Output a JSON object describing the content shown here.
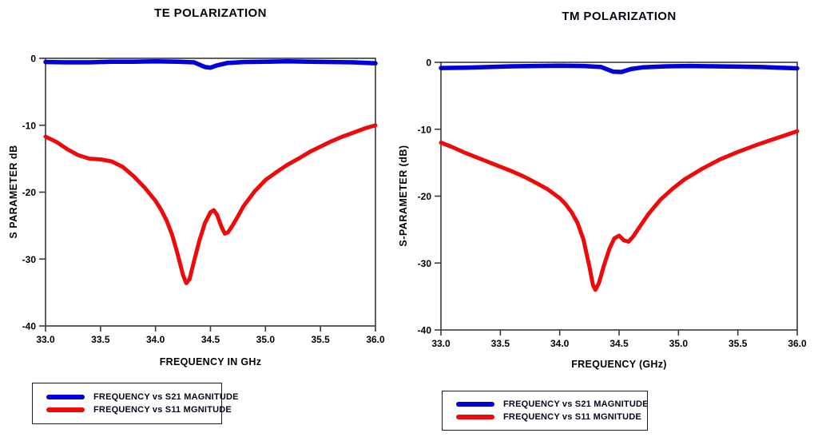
{
  "page": {
    "background": "#ffffff"
  },
  "colors": {
    "s21_blue": "#0000dd",
    "s11_red": "#ee0a0a",
    "frame": "#3a3a3a"
  },
  "chart_data": [
    {
      "id": "te",
      "type": "line",
      "title": "TE POLARIZATION",
      "xlabel": "FREQUENCY IN GHz",
      "ylabel": "S PARAMETER  dB",
      "xlim": [
        33.0,
        36.0
      ],
      "ylim": [
        -40,
        0
      ],
      "grid": false,
      "xticks": [
        33.0,
        33.5,
        34.0,
        34.5,
        35.0,
        35.5,
        36.0
      ],
      "xtick_labels": [
        "33.0",
        "33.5",
        "34.0",
        "34.5",
        "35.0",
        "35.5",
        "36.0"
      ],
      "yticks": [
        0,
        -10,
        -20,
        -30,
        -40
      ],
      "ytick_labels": [
        "0",
        "-10",
        "-20",
        "-30",
        "-40"
      ],
      "legend_position": "below-left",
      "legend": [
        {
          "label": "FREQUENCY vs S21  MAGNITUDE",
          "color": "#0000dd"
        },
        {
          "label": "FREQUENCY vs S11 MGNITUDE",
          "color": "#ee0a0a"
        }
      ],
      "series": [
        {
          "name": "S11",
          "color": "#ee0a0a",
          "width": 5,
          "points": [
            [
              33.0,
              -11.7
            ],
            [
              33.1,
              -12.5
            ],
            [
              33.2,
              -13.6
            ],
            [
              33.3,
              -14.5
            ],
            [
              33.4,
              -15.0
            ],
            [
              33.5,
              -15.1
            ],
            [
              33.6,
              -15.4
            ],
            [
              33.7,
              -16.2
            ],
            [
              33.8,
              -17.6
            ],
            [
              33.9,
              -19.3
            ],
            [
              34.0,
              -21.3
            ],
            [
              34.05,
              -22.6
            ],
            [
              34.1,
              -24.2
            ],
            [
              34.15,
              -26.3
            ],
            [
              34.2,
              -29.2
            ],
            [
              34.25,
              -32.4
            ],
            [
              34.28,
              -33.6
            ],
            [
              34.31,
              -33.0
            ],
            [
              34.35,
              -30.3
            ],
            [
              34.4,
              -27.2
            ],
            [
              34.45,
              -24.6
            ],
            [
              34.5,
              -23.0
            ],
            [
              34.53,
              -22.7
            ],
            [
              34.56,
              -23.4
            ],
            [
              34.6,
              -25.2
            ],
            [
              34.63,
              -26.2
            ],
            [
              34.66,
              -26.0
            ],
            [
              34.7,
              -25.0
            ],
            [
              34.75,
              -23.6
            ],
            [
              34.8,
              -22.1
            ],
            [
              34.9,
              -19.9
            ],
            [
              35.0,
              -18.2
            ],
            [
              35.1,
              -17.0
            ],
            [
              35.2,
              -15.9
            ],
            [
              35.3,
              -15.0
            ],
            [
              35.4,
              -14.0
            ],
            [
              35.5,
              -13.2
            ],
            [
              35.6,
              -12.4
            ],
            [
              35.7,
              -11.7
            ],
            [
              35.8,
              -11.1
            ],
            [
              35.9,
              -10.5
            ],
            [
              36.0,
              -10.0
            ]
          ]
        },
        {
          "name": "S21",
          "color": "#0000dd",
          "width": 5.5,
          "points": [
            [
              33.0,
              -0.55
            ],
            [
              33.2,
              -0.6
            ],
            [
              33.4,
              -0.6
            ],
            [
              33.6,
              -0.5
            ],
            [
              33.8,
              -0.5
            ],
            [
              34.0,
              -0.45
            ],
            [
              34.2,
              -0.5
            ],
            [
              34.35,
              -0.6
            ],
            [
              34.45,
              -1.3
            ],
            [
              34.5,
              -1.4
            ],
            [
              34.55,
              -1.1
            ],
            [
              34.65,
              -0.7
            ],
            [
              34.8,
              -0.55
            ],
            [
              35.0,
              -0.5
            ],
            [
              35.2,
              -0.45
            ],
            [
              35.4,
              -0.5
            ],
            [
              35.6,
              -0.55
            ],
            [
              35.8,
              -0.6
            ],
            [
              36.0,
              -0.75
            ]
          ]
        }
      ]
    },
    {
      "id": "tm",
      "type": "line",
      "title": "TM POLARIZATION",
      "xlabel": "FREQUENCY  (GHz)",
      "ylabel": "S-PARAMETER  (dB)",
      "xlim": [
        33.0,
        36.0
      ],
      "ylim": [
        -40,
        0
      ],
      "grid": false,
      "xticks": [
        33.0,
        33.5,
        34.0,
        34.5,
        35.0,
        35.5,
        36.0
      ],
      "xtick_labels": [
        "33.0",
        "33.5",
        "34.0",
        "34.5",
        "35.0",
        "35.5",
        "36.0"
      ],
      "yticks": [
        0,
        -10,
        -20,
        -30,
        -40
      ],
      "ytick_labels": [
        "0",
        "-10",
        "-20",
        "-30",
        "-40"
      ],
      "legend_position": "below-left",
      "legend": [
        {
          "label": "FREQUENCY vs S21  MAGNITUDE",
          "color": "#0000dd"
        },
        {
          "label": "FREQUENCY vs S11  MGNITUDE",
          "color": "#ee0a0a"
        }
      ],
      "series": [
        {
          "name": "S11",
          "color": "#ee0a0a",
          "width": 5,
          "points": [
            [
              33.0,
              -12.0
            ],
            [
              33.1,
              -12.7
            ],
            [
              33.2,
              -13.5
            ],
            [
              33.3,
              -14.2
            ],
            [
              33.4,
              -14.9
            ],
            [
              33.5,
              -15.6
            ],
            [
              33.6,
              -16.3
            ],
            [
              33.7,
              -17.1
            ],
            [
              33.8,
              -18.0
            ],
            [
              33.9,
              -19.0
            ],
            [
              34.0,
              -20.3
            ],
            [
              34.05,
              -21.2
            ],
            [
              34.1,
              -22.4
            ],
            [
              34.15,
              -24.0
            ],
            [
              34.2,
              -26.5
            ],
            [
              34.25,
              -30.5
            ],
            [
              34.28,
              -33.3
            ],
            [
              34.3,
              -34.0
            ],
            [
              34.33,
              -33.0
            ],
            [
              34.37,
              -30.5
            ],
            [
              34.42,
              -27.8
            ],
            [
              34.46,
              -26.3
            ],
            [
              34.5,
              -25.9
            ],
            [
              34.54,
              -26.6
            ],
            [
              34.58,
              -26.8
            ],
            [
              34.62,
              -26.0
            ],
            [
              34.68,
              -24.4
            ],
            [
              34.75,
              -22.6
            ],
            [
              34.85,
              -20.5
            ],
            [
              34.95,
              -18.9
            ],
            [
              35.05,
              -17.5
            ],
            [
              35.2,
              -15.9
            ],
            [
              35.35,
              -14.5
            ],
            [
              35.5,
              -13.4
            ],
            [
              35.65,
              -12.4
            ],
            [
              35.8,
              -11.5
            ],
            [
              35.9,
              -10.9
            ],
            [
              36.0,
              -10.3
            ]
          ]
        },
        {
          "name": "S21",
          "color": "#0000dd",
          "width": 5.5,
          "points": [
            [
              33.0,
              -0.85
            ],
            [
              33.2,
              -0.8
            ],
            [
              33.4,
              -0.7
            ],
            [
              33.6,
              -0.6
            ],
            [
              33.8,
              -0.55
            ],
            [
              34.0,
              -0.5
            ],
            [
              34.2,
              -0.55
            ],
            [
              34.35,
              -0.7
            ],
            [
              34.45,
              -1.4
            ],
            [
              34.52,
              -1.45
            ],
            [
              34.6,
              -1.0
            ],
            [
              34.7,
              -0.75
            ],
            [
              34.9,
              -0.6
            ],
            [
              35.1,
              -0.55
            ],
            [
              35.3,
              -0.6
            ],
            [
              35.5,
              -0.65
            ],
            [
              35.7,
              -0.7
            ],
            [
              35.85,
              -0.8
            ],
            [
              36.0,
              -0.9
            ]
          ]
        }
      ]
    }
  ]
}
